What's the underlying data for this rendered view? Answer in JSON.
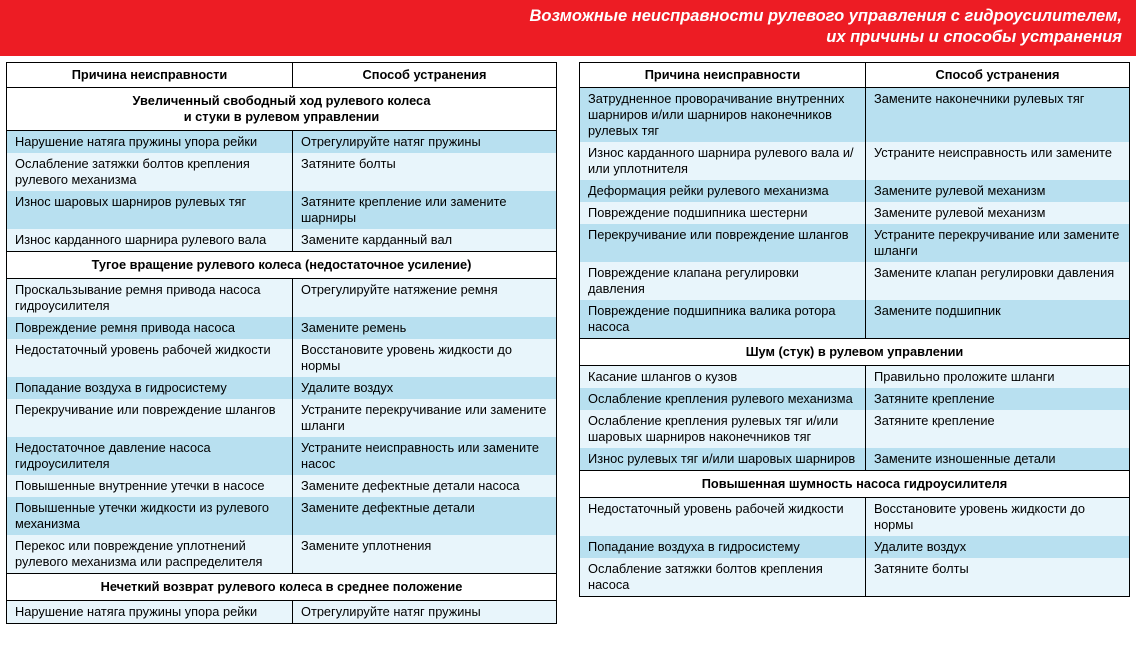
{
  "header": {
    "line1": "Возможные неисправности рулевого управления с гидроусилителем,",
    "line2": "их причины и способы устранения"
  },
  "columns_header": {
    "cause": "Причина неисправности",
    "remedy": "Способ устранения"
  },
  "left": [
    {
      "type": "section",
      "text": "Увеличенный свободный ход рулевого колеса\nи стуки в рулевом управлении"
    },
    {
      "type": "row",
      "band": "a",
      "cause": "Нарушение натяга пружины упора рейки",
      "remedy": "Отрегулируйте натяг пружины"
    },
    {
      "type": "row",
      "band": "b",
      "cause": "Ослабление затяжки болтов крепления рулевого механизма",
      "remedy": "Затяните болты"
    },
    {
      "type": "row",
      "band": "a",
      "cause": "Износ шаровых шарниров рулевых тяг",
      "remedy": "Затяните крепление или замените шарниры"
    },
    {
      "type": "row",
      "band": "b",
      "cause": "Износ карданного шарнира рулевого вала",
      "remedy": "Замените карданный вал"
    },
    {
      "type": "section",
      "text": "Тугое вращение рулевого колеса (недостаточное усиление)"
    },
    {
      "type": "row",
      "band": "b",
      "cause": "Проскальзывание ремня привода насоса гидроусилителя",
      "remedy": "Отрегулируйте натяжение ремня"
    },
    {
      "type": "row",
      "band": "a",
      "cause": "Повреждение ремня привода насоса",
      "remedy": "Замените ремень"
    },
    {
      "type": "row",
      "band": "b",
      "cause": "Недостаточный уровень рабочей жидкости",
      "remedy": "Восстановите уровень жидкости до нормы"
    },
    {
      "type": "row",
      "band": "a",
      "cause": "Попадание воздуха в гидросистему",
      "remedy": "Удалите воздух"
    },
    {
      "type": "row",
      "band": "b",
      "cause": "Перекручивание или повреждение шлангов",
      "remedy": "Устраните перекручивание или замените шланги"
    },
    {
      "type": "row",
      "band": "a",
      "cause": "Недостаточное давление насоса гидроусилителя",
      "remedy": "Устраните неисправность или замените насос"
    },
    {
      "type": "row",
      "band": "b",
      "cause": "Повышенные внутренние утечки в насосе",
      "remedy": "Замените дефектные детали насоса"
    },
    {
      "type": "row",
      "band": "a",
      "cause": "Повышенные утечки жидкости из рулевого механизма",
      "remedy": "Замените дефектные детали"
    },
    {
      "type": "row",
      "band": "b",
      "cause": "Перекос или повреждение уплотнений рулевого механизма или распределителя",
      "remedy": "Замените уплотнения"
    },
    {
      "type": "section",
      "text": "Нечеткий возврат рулевого колеса в среднее положение"
    },
    {
      "type": "row",
      "band": "b",
      "last": true,
      "cause": "Нарушение натяга пружины упора рейки",
      "remedy": "Отрегулируйте натяг пружины"
    }
  ],
  "right": [
    {
      "type": "row",
      "band": "a",
      "cause": "Затрудненное проворачивание внутренних шарниров и/или шарниров наконечников рулевых тяг",
      "remedy": "Замените наконечники рулевых тяг"
    },
    {
      "type": "row",
      "band": "b",
      "cause": "Износ карданного шарнира рулевого вала и/или уплотнителя",
      "remedy": "Устраните неисправность или замените"
    },
    {
      "type": "row",
      "band": "a",
      "cause": "Деформация рейки рулевого механизма",
      "remedy": "Замените рулевой механизм"
    },
    {
      "type": "row",
      "band": "b",
      "cause": "Повреждение подшипника шестерни",
      "remedy": "Замените рулевой механизм"
    },
    {
      "type": "row",
      "band": "a",
      "cause": "Перекручивание или повреждение шлангов",
      "remedy": "Устраните перекручивание или замените шланги"
    },
    {
      "type": "row",
      "band": "b",
      "cause": "Повреждение клапана регулировки давления",
      "remedy": "Замените клапан регулировки давления"
    },
    {
      "type": "row",
      "band": "a",
      "cause": "Повреждение подшипника валика ротора насоса",
      "remedy": "Замените подшипник"
    },
    {
      "type": "section",
      "text": "Шум (стук) в рулевом управлении"
    },
    {
      "type": "row",
      "band": "b",
      "cause": "Касание шлангов о кузов",
      "remedy": "Правильно проложите шланги"
    },
    {
      "type": "row",
      "band": "a",
      "cause": "Ослабление крепления рулевого механизма",
      "remedy": "Затяните крепление"
    },
    {
      "type": "row",
      "band": "b",
      "cause": "Ослабление крепления рулевых тяг и/или шаровых шарниров наконечников тяг",
      "remedy": "Затяните крепление"
    },
    {
      "type": "row",
      "band": "a",
      "cause": "Износ рулевых тяг и/или шаровых шарниров",
      "remedy": "Замените изношенные детали"
    },
    {
      "type": "section",
      "text": "Повышенная шумность насоса гидроусилителя"
    },
    {
      "type": "row",
      "band": "b",
      "cause": "Недостаточный уровень рабочей жидкости",
      "remedy": "Восстановите уровень жидкости до нормы"
    },
    {
      "type": "row",
      "band": "a",
      "cause": "Попадание воздуха в гидросистему",
      "remedy": "Удалите воздух"
    },
    {
      "type": "row",
      "band": "b",
      "last": true,
      "cause": "Ослабление затяжки болтов крепления насоса",
      "remedy": "Затяните болты"
    }
  ]
}
